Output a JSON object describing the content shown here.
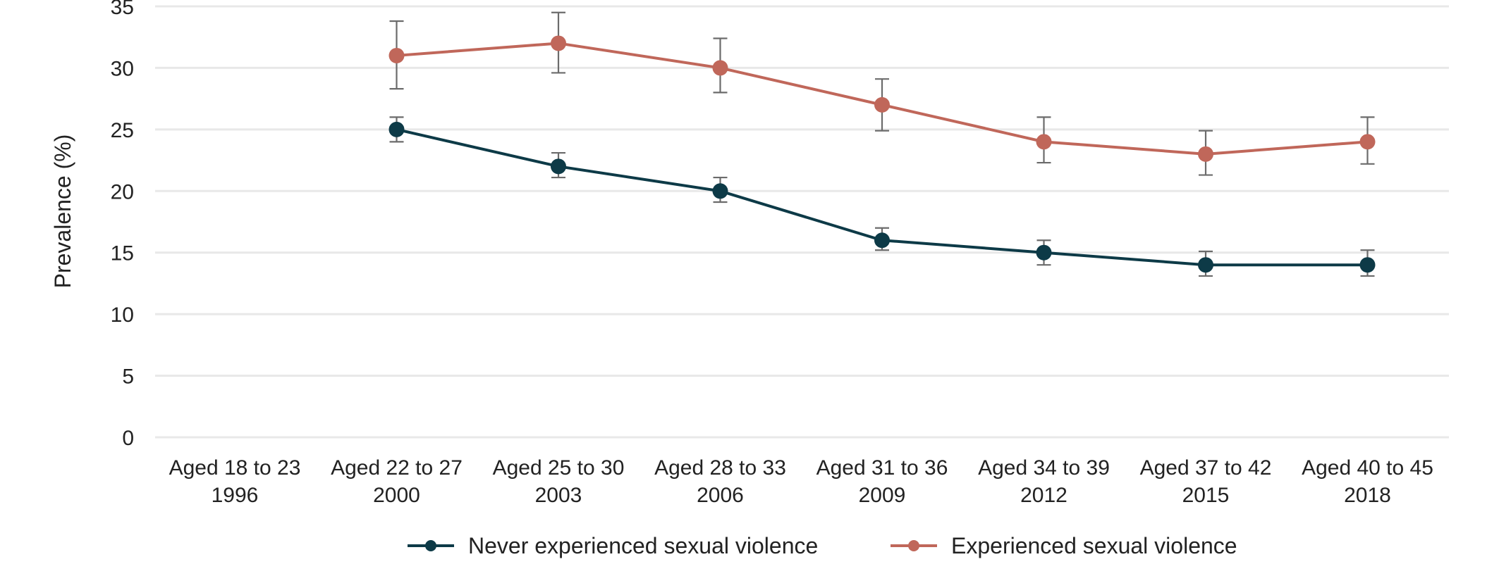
{
  "chart_data": {
    "type": "line",
    "title": "",
    "ylabel": "Prevalence (%)",
    "xlabel": "",
    "ylim": [
      0,
      35
    ],
    "y_ticks": [
      0,
      5,
      10,
      15,
      20,
      25,
      30,
      35
    ],
    "grid": true,
    "legend_position": "bottom",
    "categories": [
      [
        "Aged 18 to 23",
        "1996"
      ],
      [
        "Aged 22 to 27",
        "2000"
      ],
      [
        "Aged 25 to 30",
        "2003"
      ],
      [
        "Aged 28 to 33",
        "2006"
      ],
      [
        "Aged 31 to 36",
        "2009"
      ],
      [
        "Aged 34 to 39",
        "2012"
      ],
      [
        "Aged 37 to 42",
        "2015"
      ],
      [
        "Aged 40 to 45",
        "2018"
      ]
    ],
    "series": [
      {
        "name": "Never experienced sexual violence",
        "color": "#0d3a47",
        "values": [
          null,
          25,
          22,
          20,
          16,
          15,
          14,
          14
        ],
        "err_low": [
          null,
          24.0,
          21.1,
          19.1,
          15.2,
          14.0,
          13.1,
          13.1
        ],
        "err_high": [
          null,
          26.0,
          23.1,
          21.1,
          17.0,
          16.0,
          15.1,
          15.2
        ]
      },
      {
        "name": "Experienced sexual violence",
        "color": "#c0675a",
        "values": [
          null,
          31,
          32,
          30,
          27,
          24,
          23,
          24
        ],
        "err_low": [
          null,
          28.3,
          29.6,
          28.0,
          24.9,
          22.3,
          21.3,
          22.2
        ],
        "err_high": [
          null,
          33.8,
          34.5,
          32.4,
          29.1,
          26.0,
          24.9,
          26.0
        ]
      }
    ],
    "error_bar_color": "#6b6b6b",
    "grid_color": "#e8e8e8"
  }
}
